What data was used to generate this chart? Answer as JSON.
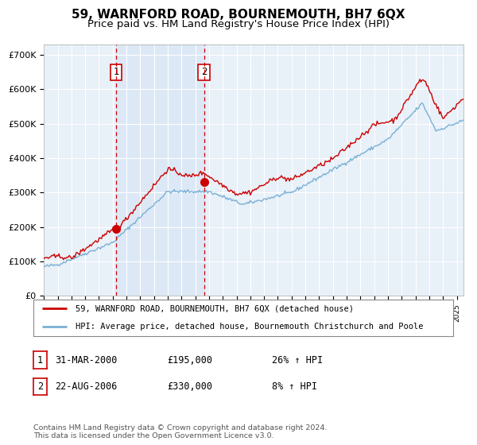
{
  "title": "59, WARNFORD ROAD, BOURNEMOUTH, BH7 6QX",
  "subtitle": "Price paid vs. HM Land Registry's House Price Index (HPI)",
  "ylabel_ticks": [
    "£0",
    "£100K",
    "£200K",
    "£300K",
    "£400K",
    "£500K",
    "£600K",
    "£700K"
  ],
  "ytick_vals": [
    0,
    100000,
    200000,
    300000,
    400000,
    500000,
    600000,
    700000
  ],
  "ylim": [
    0,
    730000
  ],
  "xlim_start": 1995.0,
  "xlim_end": 2025.5,
  "sale1": {
    "date": 2000.25,
    "price": 195000,
    "label": "1"
  },
  "sale2": {
    "date": 2006.63,
    "price": 330000,
    "label": "2"
  },
  "red_line_color": "#cc0000",
  "blue_line_color": "#7ab0d4",
  "shade_color": "#dce8f5",
  "background_color": "#ffffff",
  "plot_bg_color": "#e8f0f8",
  "grid_color": "#ffffff",
  "legend_label_red": "59, WARNFORD ROAD, BOURNEMOUTH, BH7 6QX (detached house)",
  "legend_label_blue": "HPI: Average price, detached house, Bournemouth Christchurch and Poole",
  "table_row1": [
    "1",
    "31-MAR-2000",
    "£195,000",
    "26% ↑ HPI"
  ],
  "table_row2": [
    "2",
    "22-AUG-2006",
    "£330,000",
    "8% ↑ HPI"
  ],
  "footnote": "Contains HM Land Registry data © Crown copyright and database right 2024.\nThis data is licensed under the Open Government Licence v3.0.",
  "title_fontsize": 11,
  "subtitle_fontsize": 9.5
}
